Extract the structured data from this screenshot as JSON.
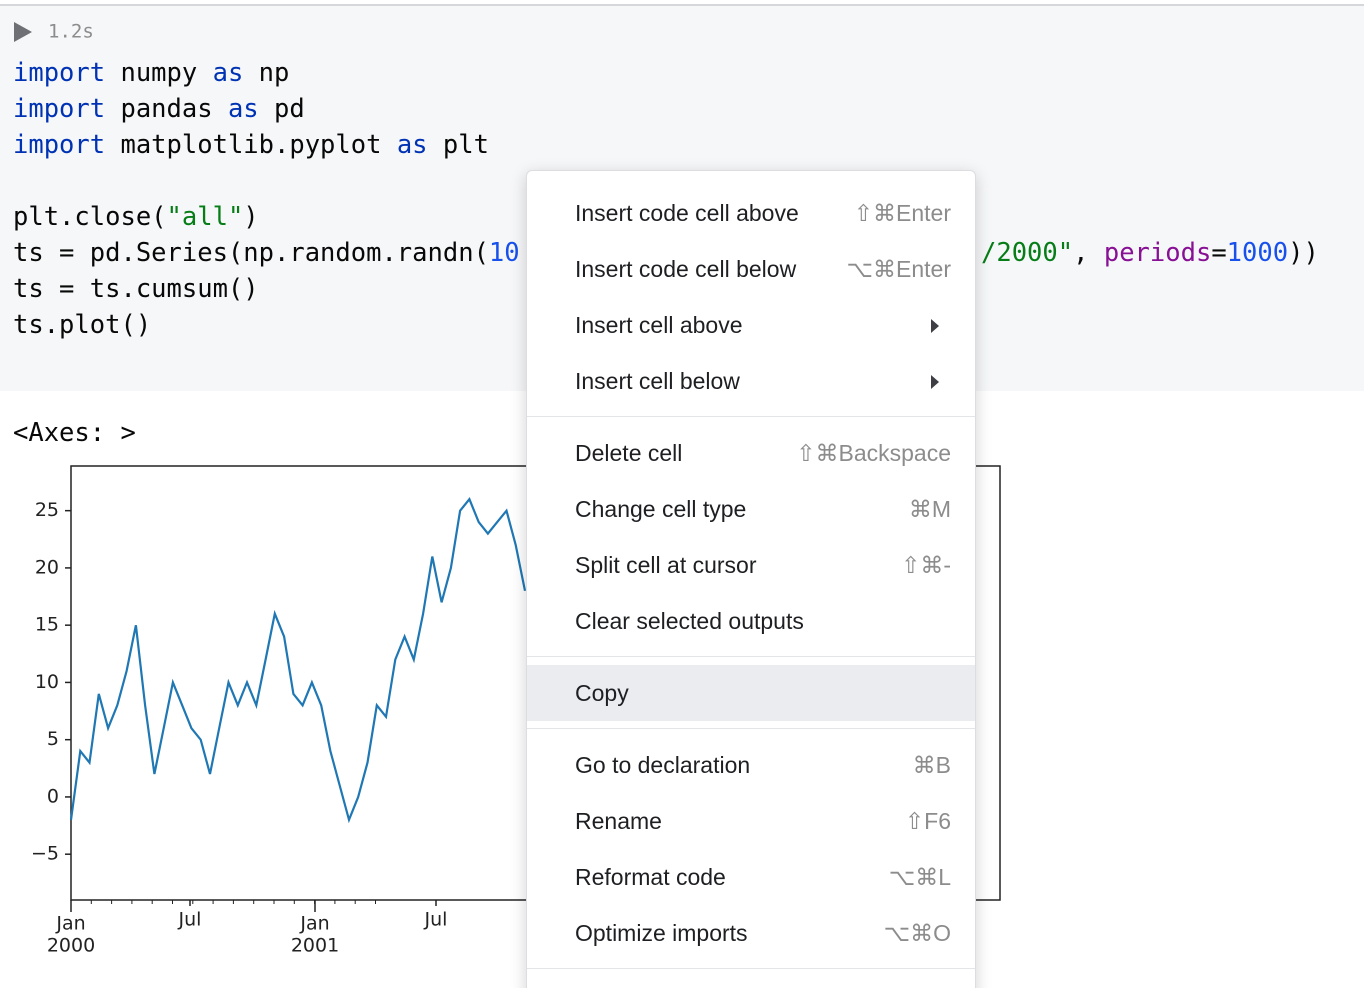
{
  "cell": {
    "run_time": "1.2s",
    "code": [
      [
        {
          "text": "import",
          "color": "#0033b3"
        },
        {
          "text": " numpy "
        },
        {
          "text": "as",
          "color": "#0033b3"
        },
        {
          "text": " np"
        }
      ],
      [
        {
          "text": "import",
          "color": "#0033b3"
        },
        {
          "text": " pandas "
        },
        {
          "text": "as",
          "color": "#0033b3"
        },
        {
          "text": " pd"
        }
      ],
      [
        {
          "text": "import",
          "color": "#0033b3"
        },
        {
          "text": " matplotlib.pyplot "
        },
        {
          "text": "as",
          "color": "#0033b3"
        },
        {
          "text": " plt"
        }
      ],
      [],
      [
        {
          "text": "plt.close("
        },
        {
          "text": "\"all\"",
          "color": "#067d17"
        },
        {
          "text": ")"
        }
      ],
      [
        {
          "text": "ts = pd.Series(np.random.randn("
        },
        {
          "text": "10",
          "color": "#1750eb"
        }
      ],
      [
        {
          "text": "ts = ts.cumsum()"
        }
      ],
      [
        {
          "text": "ts.plot()"
        }
      ]
    ],
    "code_right_fragment": [
      {
        "text": "/2000\"",
        "color": "#067d17"
      },
      {
        "text": ", "
      },
      {
        "text": "periods",
        "color": "#871094"
      },
      {
        "text": "="
      },
      {
        "text": "1000",
        "color": "#1750eb"
      },
      {
        "text": "))"
      }
    ]
  },
  "output": {
    "repr": "<Axes: >",
    "plot": {
      "type": "line",
      "color": "#1f77b4",
      "ylim": [
        -9,
        28.9
      ],
      "yticks": [
        {
          "value": -5,
          "label": "−5"
        },
        0,
        5,
        10,
        15,
        20,
        25
      ],
      "xtick_labels": [
        [
          "Jan",
          "2000"
        ],
        [
          "Jul"
        ],
        [
          "Jan",
          "2001"
        ],
        [
          "Jul"
        ]
      ],
      "values": [
        -2,
        4,
        3,
        9,
        6,
        8,
        11,
        15,
        8,
        2,
        6,
        10,
        8,
        6,
        5,
        2,
        6,
        10,
        8,
        10,
        8,
        12,
        16,
        14,
        9,
        8,
        10,
        8,
        4,
        1,
        -2,
        0,
        3,
        8,
        7,
        12,
        14,
        12,
        16,
        21,
        17,
        20,
        25,
        26,
        24,
        23,
        24,
        25,
        22,
        18
      ]
    }
  },
  "context_menu": {
    "groups": [
      [
        {
          "label": "Insert code cell above",
          "shortcut": "⇧⌘Enter"
        },
        {
          "label": "Insert code cell below",
          "shortcut": "⌥⌘Enter"
        },
        {
          "label": "Insert cell above",
          "submenu": true
        },
        {
          "label": "Insert cell below",
          "submenu": true
        }
      ],
      [
        {
          "label": "Delete cell",
          "shortcut": "⇧⌘Backspace"
        },
        {
          "label": "Change cell type",
          "shortcut": "⌘M"
        },
        {
          "label": "Split cell at cursor",
          "shortcut": "⇧⌘-"
        },
        {
          "label": "Clear selected outputs"
        }
      ],
      [
        {
          "label": "Copy",
          "highlighted": true
        }
      ],
      [
        {
          "label": "Go to declaration",
          "shortcut": "⌘B"
        },
        {
          "label": "Rename",
          "shortcut": "⇧F6"
        },
        {
          "label": "Reformat code",
          "shortcut": "⌥⌘L"
        },
        {
          "label": "Optimize imports",
          "shortcut": "⌥⌘O"
        }
      ]
    ]
  }
}
